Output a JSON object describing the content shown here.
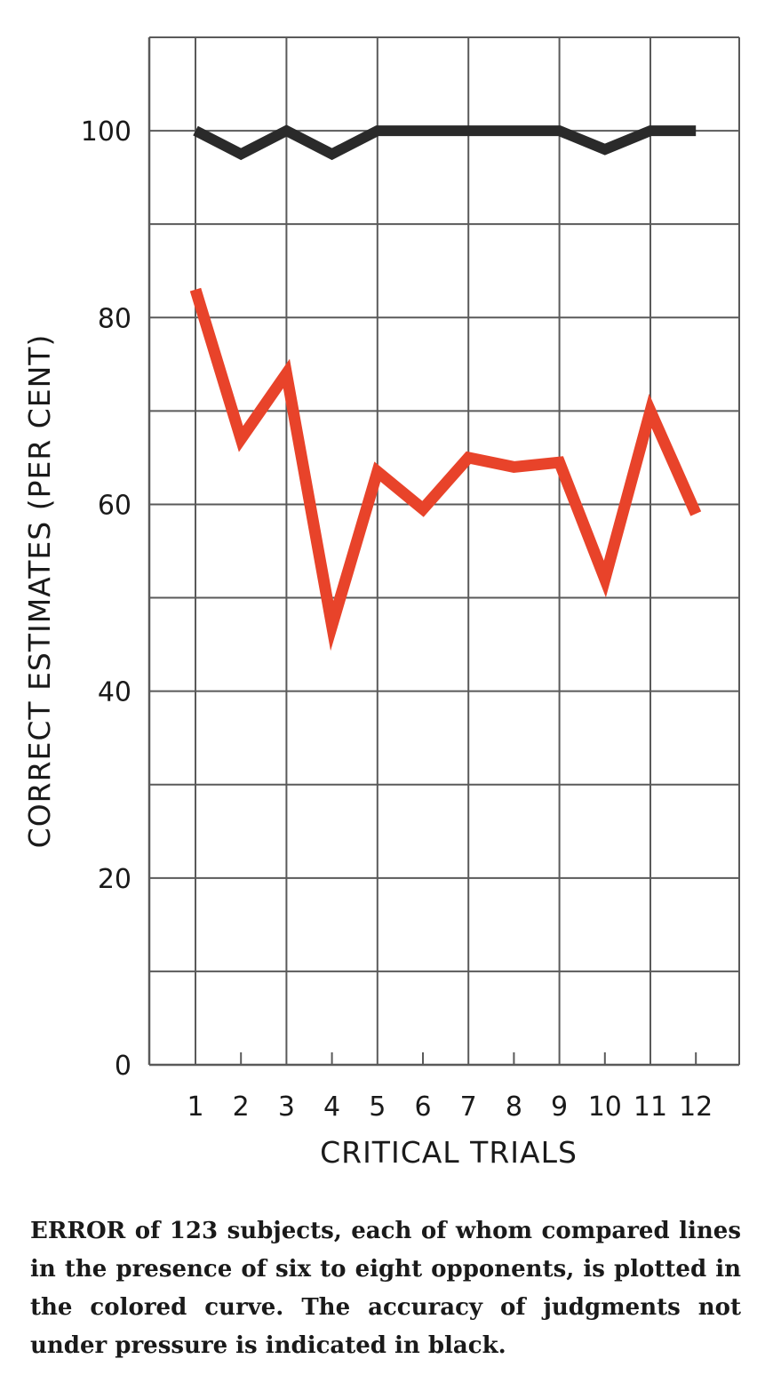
{
  "chart_data": {
    "type": "line",
    "xlabel": "CRITICAL TRIALS",
    "ylabel": "CORRECT ESTIMATES (PER CENT)",
    "x": [
      1,
      2,
      3,
      4,
      5,
      6,
      7,
      8,
      9,
      10,
      11,
      12
    ],
    "x_tick_labels": [
      "1",
      "2",
      "3",
      "4",
      "5",
      "6",
      "7",
      "8",
      "9",
      "10",
      "11",
      "12"
    ],
    "ylim": [
      0,
      110
    ],
    "y_ticks": [
      0,
      20,
      40,
      60,
      80,
      100
    ],
    "y_tick_labels": [
      "0",
      "20",
      "40",
      "60",
      "80",
      "100"
    ],
    "grid": true,
    "series": [
      {
        "color": "#2a2a2a",
        "values": [
          100,
          97.5,
          100,
          97.5,
          100,
          100,
          100,
          100,
          100,
          98,
          100,
          100
        ]
      },
      {
        "color": "#e8432a",
        "values": [
          83,
          67,
          74,
          47,
          63.5,
          59.5,
          65,
          64,
          64.5,
          52,
          70,
          59
        ]
      }
    ]
  },
  "caption": "ERROR of 123 subjects, each of whom compared lines in the presence of six to eight opponents, is plotted in the colored curve. The accuracy of judgments not under pressure is indicated in black."
}
